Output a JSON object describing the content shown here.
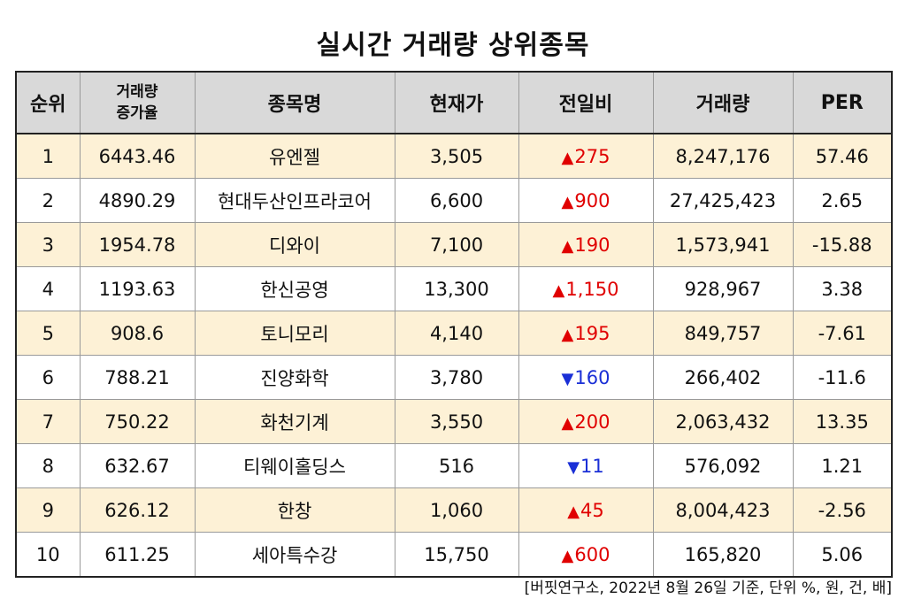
{
  "title": "실시간 거래량 상위종목",
  "columns": {
    "rank": "순위",
    "growth_line1": "거래량",
    "growth_line2": "증가율",
    "name": "종목명",
    "price": "현재가",
    "change": "전일비",
    "volume": "거래량",
    "per": "PER"
  },
  "rows": [
    {
      "rank": "1",
      "growth": "6443.46",
      "name": "유엔젤",
      "price": "3,505",
      "dir": "up",
      "arrow": "▲",
      "change": "275",
      "volume": "8,247,176",
      "per": "57.46"
    },
    {
      "rank": "2",
      "growth": "4890.29",
      "name": "현대두산인프라코어",
      "price": "6,600",
      "dir": "up",
      "arrow": "▲",
      "change": "900",
      "volume": "27,425,423",
      "per": "2.65"
    },
    {
      "rank": "3",
      "growth": "1954.78",
      "name": "디와이",
      "price": "7,100",
      "dir": "up",
      "arrow": "▲",
      "change": "190",
      "volume": "1,573,941",
      "per": "-15.88"
    },
    {
      "rank": "4",
      "growth": "1193.63",
      "name": "한신공영",
      "price": "13,300",
      "dir": "up",
      "arrow": "▲",
      "change": "1,150",
      "volume": "928,967",
      "per": "3.38"
    },
    {
      "rank": "5",
      "growth": "908.6",
      "name": "토니모리",
      "price": "4,140",
      "dir": "up",
      "arrow": "▲",
      "change": "195",
      "volume": "849,757",
      "per": "-7.61"
    },
    {
      "rank": "6",
      "growth": "788.21",
      "name": "진양화학",
      "price": "3,780",
      "dir": "down",
      "arrow": "▼",
      "change": "160",
      "volume": "266,402",
      "per": "-11.6"
    },
    {
      "rank": "7",
      "growth": "750.22",
      "name": "화천기계",
      "price": "3,550",
      "dir": "up",
      "arrow": "▲",
      "change": "200",
      "volume": "2,063,432",
      "per": "13.35"
    },
    {
      "rank": "8",
      "growth": "632.67",
      "name": "티웨이홀딩스",
      "price": "516",
      "dir": "down",
      "arrow": "▼",
      "change": "11",
      "volume": "576,092",
      "per": "1.21"
    },
    {
      "rank": "9",
      "growth": "626.12",
      "name": "한창",
      "price": "1,060",
      "dir": "up",
      "arrow": "▲",
      "change": "45",
      "volume": "8,004,423",
      "per": "-2.56"
    },
    {
      "rank": "10",
      "growth": "611.25",
      "name": "세아특수강",
      "price": "15,750",
      "dir": "up",
      "arrow": "▲",
      "change": "600",
      "volume": "165,820",
      "per": "5.06"
    }
  ],
  "source_note": "[버핏연구소, 2022년 8월 26일 기준, 단위 %, 원, 건, 배]",
  "colors": {
    "up": "#e00000",
    "down": "#1a2fd6",
    "header_bg": "#d9d9d9",
    "alt_row_bg": "#fdf1d6"
  }
}
